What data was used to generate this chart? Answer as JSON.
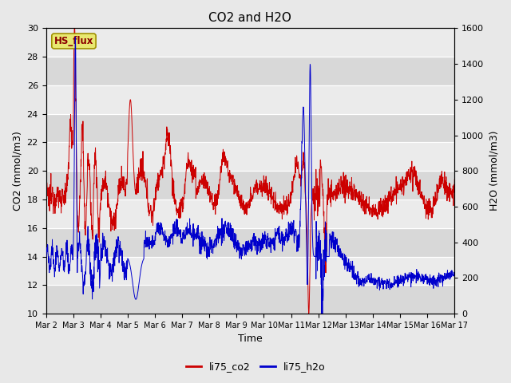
{
  "title": "CO2 and H2O",
  "xlabel": "Time",
  "ylabel_left": "CO2 (mmol/m3)",
  "ylabel_right": "H2O (mmol/m3)",
  "ylim_left": [
    10,
    30
  ],
  "ylim_right": [
    0,
    1600
  ],
  "yticks_left": [
    10,
    12,
    14,
    16,
    18,
    20,
    22,
    24,
    26,
    28,
    30
  ],
  "yticks_right": [
    0,
    200,
    400,
    600,
    800,
    1000,
    1200,
    1400,
    1600
  ],
  "xtick_labels": [
    "Mar 2",
    "Mar 3",
    "Mar 4",
    "Mar 5",
    "Mar 6",
    "Mar 7",
    "Mar 8",
    "Mar 9",
    "Mar 10",
    "Mar 11",
    "Mar 12",
    "Mar 13",
    "Mar 14",
    "Mar 15",
    "Mar 16",
    "Mar 17"
  ],
  "co2_color": "#cc0000",
  "h2o_color": "#0000cc",
  "background_color": "#e8e8e8",
  "plot_bg_color": "#ebebeb",
  "grid_color": "#ffffff",
  "annotation_text": "HS_flux",
  "annotation_facecolor": "#e8e870",
  "annotation_edgecolor": "#a09000",
  "annotation_textcolor": "#8b0000",
  "legend_entries": [
    "li75_co2",
    "li75_h2o"
  ]
}
